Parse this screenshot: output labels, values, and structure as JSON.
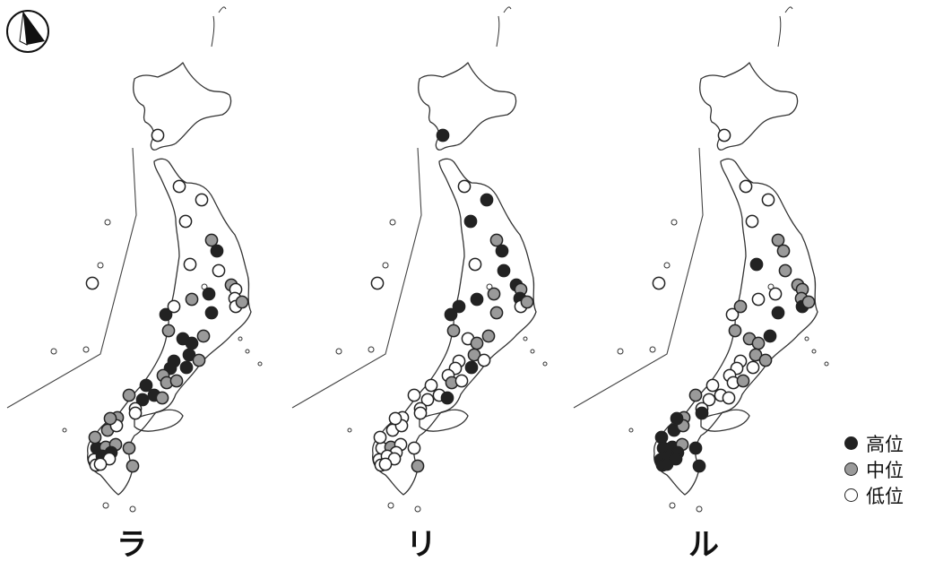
{
  "map": {
    "legend": [
      {
        "key": "high",
        "label": "高位",
        "color": "#222222"
      },
      {
        "key": "mid",
        "label": "中位",
        "color": "#9a9a9a"
      },
      {
        "key": "low",
        "label": "低位",
        "color": "#ffffff"
      }
    ],
    "panels": [
      {
        "label": "ラ",
        "levels": [
          "low",
          "low",
          "low",
          "low",
          "mid",
          "high",
          "low",
          "low",
          "mid",
          "high",
          "low",
          "low",
          "mid",
          "high",
          "low",
          "mid",
          "high",
          "low",
          "mid",
          "high",
          "high",
          "mid",
          "high",
          "high",
          "mid",
          "high",
          "high",
          "mid",
          "high",
          "mid",
          "mid",
          "high",
          "mid",
          "high",
          "mid",
          "low",
          "mid",
          "low",
          "mid",
          "low",
          "mid",
          "high",
          "mid",
          "mid",
          "low",
          "low",
          "mid",
          "high",
          "high",
          "low",
          "low",
          "mid",
          "mid",
          "low"
        ]
      },
      {
        "label": "リ",
        "levels": [
          "high",
          "low",
          "high",
          "high",
          "mid",
          "high",
          "low",
          "high",
          "high",
          "mid",
          "mid",
          "high",
          "high",
          "mid",
          "low",
          "mid",
          "high",
          "high",
          "mid",
          "low",
          "mid",
          "mid",
          "mid",
          "low",
          "low",
          "high",
          "low",
          "low",
          "low",
          "mid",
          "low",
          "low",
          "high",
          "low",
          "low",
          "low",
          "low",
          "low",
          "low",
          "low",
          "low",
          "low",
          "low",
          "mid",
          "low",
          "low",
          "low",
          "low",
          "low",
          "low",
          "low",
          "mid",
          "low",
          "low"
        ]
      },
      {
        "label": "ル",
        "levels": [
          "low",
          "low",
          "low",
          "low",
          "mid",
          "mid",
          "high",
          "mid",
          "mid",
          "low",
          "mid",
          "mid",
          "low",
          "high",
          "high",
          "mid",
          "low",
          "mid",
          "mid",
          "mid",
          "mid",
          "high",
          "mid",
          "low",
          "mid",
          "low",
          "low",
          "low",
          "low",
          "low",
          "mid",
          "low",
          "low",
          "low",
          "mid",
          "low",
          "mid",
          "high",
          "high",
          "mid",
          "high",
          "high",
          "high",
          "high",
          "high",
          "high",
          "mid",
          "high",
          "high",
          "high",
          "high",
          "high",
          "high",
          "low"
        ]
      }
    ]
  }
}
